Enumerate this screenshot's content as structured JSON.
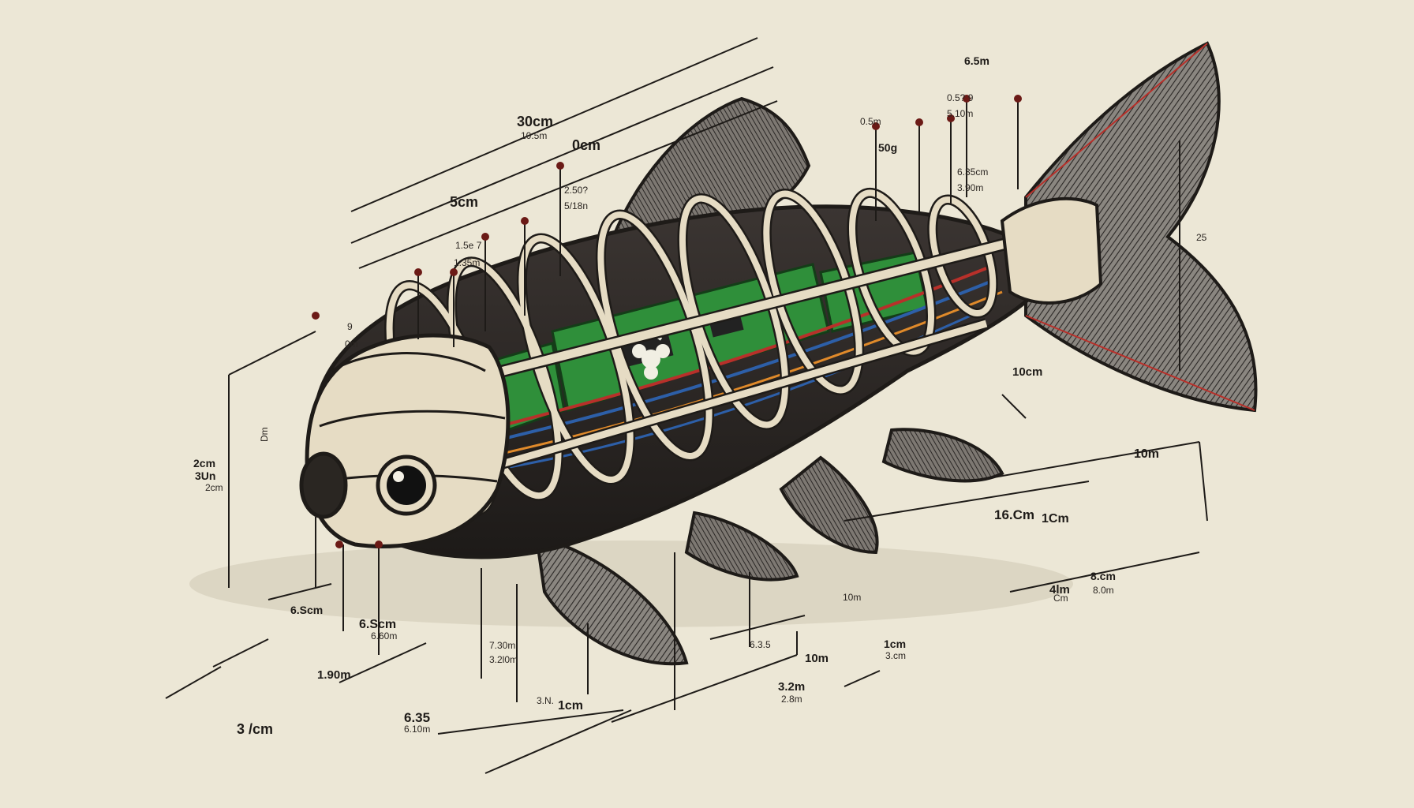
{
  "colors": {
    "paper": "#ece7d6",
    "ink": "#1e1b18",
    "frame": "#e6dcc4",
    "board": "#2f8f3a",
    "wire_red": "#b8302a",
    "wire_blue": "#2d5fa8",
    "fin": "#6a6560"
  },
  "icons": [
    "raspberry-logo-icon",
    "camera-eye-icon"
  ],
  "labels": {
    "l01": "30cm",
    "l02": "10.5m",
    "l03": "0cm",
    "l04": "5cm",
    "l05": "2.50?",
    "l06": "5/18n",
    "l07": "1.5e 7",
    "l08": "1.35m",
    "l09": "6.5m",
    "l10": "0.5? 9",
    "l11": "5.10m",
    "l12": "0.5m",
    "l13": "50g",
    "l14": "6.35cm",
    "l15": "3.90m",
    "l16": "25",
    "l17": "10cm",
    "l18": "10m",
    "l19": "16.Cm",
    "l20": "1Cm",
    "l21": "4lm",
    "l22": "8.cm",
    "l23": "Cm",
    "l24": "8.0m",
    "l25": "6.3.5",
    "l26": "10m",
    "l27": "10m",
    "l28": "1cm",
    "l29": "3.cm",
    "l30": "3.2m",
    "l31": "2.8m",
    "l32": "7.30m",
    "l33": "3.2l0m",
    "l34": "3.N.",
    "l35": "1cm",
    "l36": "6.35",
    "l37": "6.10m",
    "l38": "6.Scm",
    "l39": "6.Scm",
    "l40": "6.60m",
    "l41": "1.90m",
    "l42": "2cm",
    "l43": "3Un",
    "l44": "2cm",
    "l45": "3 /cm",
    "l46": "9",
    "l47": "0m",
    "l48": "Dm"
  }
}
